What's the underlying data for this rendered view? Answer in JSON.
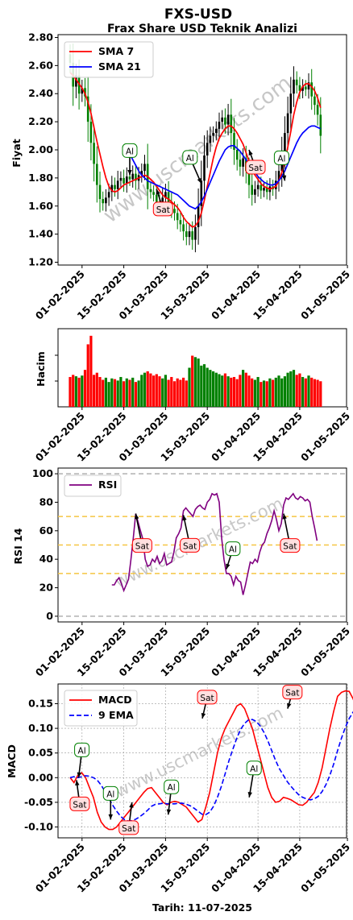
{
  "title": "FXS-USD",
  "subtitle": "Frax Share USD Teknik Analizi",
  "watermark": "www.uscmarkets.com",
  "footer": "Tarih: 11-07-2025",
  "colors": {
    "up": "#008000",
    "down": "#ff0000",
    "sma7": "#ff0000",
    "sma21": "#0000ff",
    "rsi": "#800080",
    "macd": "#ff0000",
    "ema9": "#0000ff",
    "buy_edge": "#008000",
    "buy_fill": "#ffffff",
    "sell_edge": "#ff0000",
    "sell_fill": "#ffe0e0"
  },
  "x_ticks": [
    "01-02-2025",
    "15-02-2025",
    "01-03-2025",
    "15-03-2025",
    "01-04-2025",
    "15-04-2025",
    "01-05-2025"
  ],
  "chart_data": [
    {
      "panel": "price",
      "type": "candlestick",
      "ylabel": "Fiyat",
      "ylim": [
        1.18,
        2.82
      ],
      "yticks": [
        "1.20",
        "1.40",
        "1.60",
        "1.80",
        "2.00",
        "2.20",
        "2.40",
        "2.60",
        "2.80"
      ],
      "start_date": "2025-01-28",
      "close": [
        2.62,
        2.45,
        2.53,
        2.4,
        2.44,
        2.38,
        2.2,
        2.05,
        1.9,
        1.75,
        1.65,
        1.62,
        1.66,
        1.7,
        1.75,
        1.72,
        1.78,
        1.8,
        1.76,
        1.81,
        1.79,
        1.83,
        1.78,
        1.82,
        1.85,
        1.9,
        1.72,
        1.7,
        1.68,
        1.63,
        1.6,
        1.66,
        1.7,
        1.63,
        1.58,
        1.55,
        1.5,
        1.47,
        1.42,
        1.38,
        1.42,
        1.36,
        1.45,
        1.6,
        1.78,
        1.96,
        2.05,
        2.1,
        2.12,
        2.15,
        2.2,
        2.23,
        2.18,
        2.25,
        2.12,
        2.0,
        1.93,
        1.88,
        1.94,
        1.85,
        1.75,
        1.68,
        1.72,
        1.75,
        1.71,
        1.73,
        1.7,
        1.74,
        1.72,
        1.78,
        1.85,
        1.98,
        2.12,
        2.26,
        2.4,
        2.5,
        2.46,
        2.42,
        2.45,
        2.43,
        2.48,
        2.38,
        2.32,
        2.25,
        2.1
      ],
      "sma7_approx": [
        2.55,
        2.53,
        2.5,
        2.47,
        2.44,
        2.4,
        2.34,
        2.26,
        2.16,
        2.06,
        1.97,
        1.88,
        1.8,
        1.74,
        1.71,
        1.7,
        1.71,
        1.73,
        1.75,
        1.76,
        1.77,
        1.78,
        1.79,
        1.8,
        1.81,
        1.82,
        1.81,
        1.79,
        1.77,
        1.74,
        1.71,
        1.68,
        1.66,
        1.65,
        1.63,
        1.61,
        1.59,
        1.56,
        1.52,
        1.49,
        1.47,
        1.45,
        1.46,
        1.49,
        1.55,
        1.64,
        1.74,
        1.84,
        1.94,
        2.02,
        2.08,
        2.12,
        2.15,
        2.17,
        2.17,
        2.15,
        2.12,
        2.08,
        2.04,
        1.98,
        1.92,
        1.86,
        1.82,
        1.79,
        1.76,
        1.74,
        1.73,
        1.72,
        1.73,
        1.74,
        1.78,
        1.84,
        1.92,
        2.02,
        2.13,
        2.25,
        2.34,
        2.41,
        2.45,
        2.47,
        2.47,
        2.45,
        2.42,
        2.37,
        2.3
      ],
      "sma21_approx": [
        null,
        null,
        null,
        null,
        null,
        null,
        null,
        null,
        null,
        null,
        null,
        null,
        null,
        null,
        null,
        null,
        null,
        null,
        null,
        null,
        1.97,
        1.93,
        1.89,
        1.85,
        1.82,
        1.8,
        1.78,
        1.77,
        1.76,
        1.75,
        1.74,
        1.73,
        1.72,
        1.71,
        1.7,
        1.69,
        1.68,
        1.66,
        1.64,
        1.62,
        1.6,
        1.59,
        1.58,
        1.6,
        1.63,
        1.67,
        1.72,
        1.77,
        1.82,
        1.87,
        1.92,
        1.96,
        2.0,
        2.02,
        2.03,
        2.03,
        2.01,
        1.99,
        1.96,
        1.93,
        1.9,
        1.87,
        1.84,
        1.81,
        1.79,
        1.77,
        1.76,
        1.75,
        1.75,
        1.76,
        1.78,
        1.81,
        1.85,
        1.9,
        1.95,
        2.0,
        2.05,
        2.09,
        2.12,
        2.14,
        2.16,
        2.17,
        2.17,
        2.16,
        2.15
      ],
      "legend": [
        {
          "name": "SMA 7"
        },
        {
          "name": "SMA 21"
        }
      ],
      "annotations": [
        {
          "label": "Al",
          "index": 20,
          "price": 1.82
        },
        {
          "label": "Sat",
          "index": 29,
          "price": 1.72
        },
        {
          "label": "Al",
          "index": 44,
          "price": 1.76
        },
        {
          "label": "Sat",
          "index": 60,
          "price": 2.0
        },
        {
          "label": "Al",
          "index": 72,
          "price": 1.78
        }
      ]
    },
    {
      "panel": "volume",
      "type": "bar",
      "ylabel": "Hacim",
      "values": [
        0.42,
        0.45,
        0.43,
        0.41,
        0.44,
        0.52,
        0.88,
        1.0,
        0.45,
        0.48,
        0.42,
        0.38,
        0.41,
        0.35,
        0.4,
        0.39,
        0.37,
        0.42,
        0.36,
        0.4,
        0.38,
        0.41,
        0.35,
        0.37,
        0.45,
        0.48,
        0.5,
        0.47,
        0.44,
        0.46,
        0.43,
        0.4,
        0.45,
        0.38,
        0.42,
        0.36,
        0.4,
        0.38,
        0.41,
        0.37,
        0.55,
        0.72,
        0.7,
        0.68,
        0.58,
        0.6,
        0.55,
        0.52,
        0.5,
        0.48,
        0.46,
        0.44,
        0.47,
        0.43,
        0.41,
        0.42,
        0.39,
        0.45,
        0.52,
        0.48,
        0.44,
        0.4,
        0.38,
        0.42,
        0.35,
        0.37,
        0.36,
        0.4,
        0.38,
        0.41,
        0.44,
        0.4,
        0.43,
        0.48,
        0.5,
        0.52,
        0.45,
        0.47,
        0.42,
        0.4,
        0.44,
        0.41,
        0.39,
        0.38,
        0.36
      ]
    },
    {
      "panel": "rsi",
      "type": "line",
      "ylabel": "RSI 14",
      "ylim": [
        -4,
        104
      ],
      "yticks": [
        "0",
        "20",
        "40",
        "60",
        "80",
        "100"
      ],
      "hlines": [
        0,
        30,
        50,
        70,
        100
      ],
      "start_date": "2025-02-11",
      "values": [
        22,
        22,
        25,
        27,
        23,
        18,
        22,
        26,
        40,
        55,
        72,
        66,
        60,
        54,
        40,
        35,
        36,
        40,
        38,
        42,
        37,
        39,
        44,
        36,
        37,
        38,
        45,
        55,
        58,
        62,
        74,
        76,
        74,
        72,
        70,
        75,
        77,
        78,
        76,
        75,
        80,
        82,
        86,
        85,
        86,
        80,
        55,
        40,
        30,
        30,
        28,
        22,
        28,
        25,
        24,
        15,
        22,
        30,
        38,
        37,
        40,
        38,
        45,
        50,
        52,
        58,
        62,
        67,
        74,
        68,
        60,
        65,
        78,
        83,
        82,
        84,
        86,
        83,
        82,
        84,
        83,
        81,
        82,
        80,
        70,
        62,
        53
      ],
      "legend": [
        {
          "name": "RSI"
        }
      ],
      "annotations": [
        {
          "label": "Sat",
          "index": 10,
          "value": 72
        },
        {
          "label": "Sat",
          "index": 30,
          "value": 71
        },
        {
          "label": "Al",
          "index": 48,
          "value": 33
        },
        {
          "label": "Sat",
          "index": 72,
          "value": 72
        }
      ]
    },
    {
      "panel": "macd",
      "type": "line",
      "ylabel": "MACD",
      "ylim": [
        -0.122,
        0.19
      ],
      "yticks": [
        "-0.10",
        "-0.05",
        "0.00",
        "0.05",
        "0.10",
        "0.15"
      ],
      "start_date": "2025-01-28",
      "macd": [
        0.0,
        -0.01,
        0.005,
        0.01,
        0.0,
        -0.02,
        -0.04,
        -0.07,
        -0.09,
        -0.1,
        -0.105,
        -0.105,
        -0.1,
        -0.09,
        -0.08,
        -0.07,
        -0.06,
        -0.05,
        -0.04,
        -0.03,
        -0.022,
        -0.02,
        -0.03,
        -0.04,
        -0.05,
        -0.055,
        -0.05,
        -0.048,
        -0.05,
        -0.055,
        -0.06,
        -0.07,
        -0.08,
        -0.09,
        -0.085,
        -0.06,
        -0.03,
        0.01,
        0.05,
        0.08,
        0.1,
        0.115,
        0.13,
        0.145,
        0.15,
        0.14,
        0.12,
        0.1,
        0.07,
        0.04,
        0.01,
        -0.02,
        -0.04,
        -0.05,
        -0.048,
        -0.04,
        -0.042,
        -0.045,
        -0.05,
        -0.055,
        -0.056,
        -0.05,
        -0.04,
        -0.03,
        -0.01,
        0.02,
        0.06,
        0.1,
        0.135,
        0.165,
        0.173,
        0.176,
        0.175,
        0.16,
        0.14,
        0.13,
        0.12
      ],
      "ema9": [
        0.0,
        0.002,
        0.0,
        0.002,
        0.004,
        0.003,
        0.0,
        -0.005,
        -0.015,
        -0.028,
        -0.042,
        -0.056,
        -0.068,
        -0.078,
        -0.085,
        -0.088,
        -0.087,
        -0.084,
        -0.079,
        -0.073,
        -0.066,
        -0.058,
        -0.054,
        -0.053,
        -0.052,
        -0.053,
        -0.053,
        -0.053,
        -0.052,
        -0.052,
        -0.054,
        -0.057,
        -0.062,
        -0.068,
        -0.074,
        -0.075,
        -0.07,
        -0.058,
        -0.04,
        -0.018,
        0.008,
        0.035,
        0.058,
        0.08,
        0.098,
        0.11,
        0.117,
        0.118,
        0.114,
        0.105,
        0.092,
        0.075,
        0.055,
        0.035,
        0.018,
        0.005,
        -0.008,
        -0.018,
        -0.027,
        -0.035,
        -0.04,
        -0.043,
        -0.045,
        -0.043,
        -0.038,
        -0.028,
        -0.014,
        0.005,
        0.028,
        0.055,
        0.08,
        0.102,
        0.12,
        0.133,
        0.14,
        0.142,
        0.14
      ],
      "legend": [
        {
          "name": "MACD"
        },
        {
          "name": "9 EMA"
        }
      ],
      "annotations": [
        {
          "label": "Al",
          "index": 4,
          "value": 0.0
        },
        {
          "label": "Sat",
          "index": 3,
          "value": -0.005
        },
        {
          "label": "Al",
          "index": 19,
          "value": -0.085
        },
        {
          "label": "Sat",
          "index": 29,
          "value": -0.05
        },
        {
          "label": "Al",
          "index": 46,
          "value": -0.075
        },
        {
          "label": "Sat",
          "index": 62,
          "value": 0.12
        },
        {
          "label": "Al",
          "index": 84,
          "value": -0.04
        },
        {
          "label": "Sat",
          "index": 102,
          "value": 0.14
        }
      ]
    }
  ]
}
